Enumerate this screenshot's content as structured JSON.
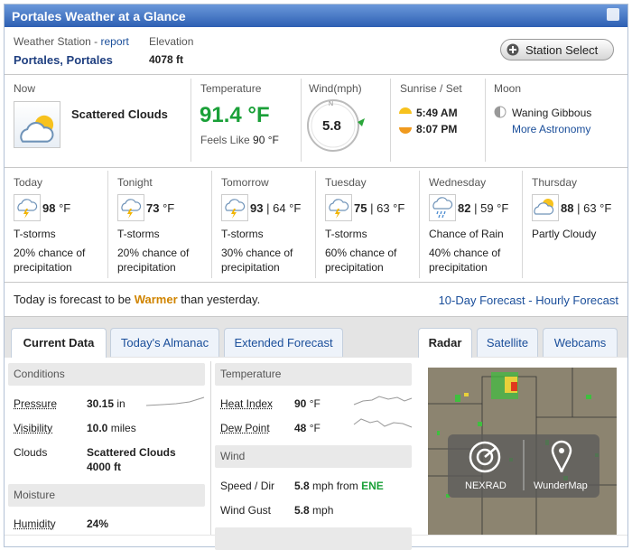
{
  "header": {
    "title": "Portales Weather at a Glance"
  },
  "station": {
    "label": "Weather Station -",
    "link": "report",
    "name": "Portales, Portales",
    "elevation_label": "Elevation",
    "elevation": "4078 ft",
    "button": "Station Select"
  },
  "current": {
    "now_label": "Now",
    "condition": "Scattered Clouds",
    "temperature_label": "Temperature",
    "temperature": "91.4 °F",
    "feels_label": "Feels Like",
    "feels": "90 °F",
    "wind_label": "Wind(mph)",
    "wind_speed": "5.8",
    "compass": "N",
    "sun_label": "Sunrise / Set",
    "sunrise": "5:49 AM",
    "sunset": "8:07 PM",
    "moon_label": "Moon",
    "moon_phase": "Waning Gibbous",
    "moon_link": "More Astronomy"
  },
  "forecast": [
    {
      "day": "Today",
      "hi": "98",
      "rest": "°F",
      "condition": "T-storms",
      "precip": [
        "20% chance of",
        "precipitation"
      ]
    },
    {
      "day": "Tonight",
      "hi": "73",
      "rest": "°F",
      "condition": "T-storms",
      "precip": [
        "20% chance of",
        "precipitation"
      ]
    },
    {
      "day": "Tomorrow",
      "hi": "93",
      "rest": "| 64 °F",
      "condition": "T-storms",
      "precip": [
        "30% chance of",
        "precipitation"
      ]
    },
    {
      "day": "Tuesday",
      "hi": "75",
      "rest": "| 63 °F",
      "condition": "T-storms",
      "precip": [
        "60% chance of",
        "precipitation"
      ]
    },
    {
      "day": "Wednesday",
      "hi": "82",
      "rest": "| 59 °F",
      "condition": "Chance of Rain",
      "precip": [
        "40% chance of",
        "precipitation"
      ]
    },
    {
      "day": "Thursday",
      "hi": "88",
      "rest": "| 63 °F",
      "condition": "Partly Cloudy",
      "precip": []
    }
  ],
  "summary": {
    "before": "Today is forecast to be",
    "highlight": "Warmer",
    "after": "than yesterday.",
    "link1": "10-Day Forecast",
    "separator": "-",
    "link2": "Hourly Forecast"
  },
  "tabs": [
    "Current Data",
    "Today's Almanac",
    "Extended Forecast"
  ],
  "map_tabs": [
    "Radar",
    "Satellite",
    "Webcams"
  ],
  "conditions": {
    "title": "Conditions",
    "pressure": {
      "label": "Pressure",
      "value": "30.15",
      "unit": "in"
    },
    "visibility": {
      "label": "Visibility",
      "value": "10.0",
      "unit": "miles"
    },
    "clouds": {
      "label": "Clouds",
      "value": "Scattered Clouds",
      "sub": "4000 ft"
    }
  },
  "moisture": {
    "title": "Moisture",
    "humidity": {
      "label": "Humidity",
      "value": "24%"
    }
  },
  "temperature": {
    "title": "Temperature",
    "heat_index": {
      "label": "Heat Index",
      "value": "90",
      "unit": "°F"
    },
    "dew_point": {
      "label": "Dew Point",
      "value": "48",
      "unit": "°F"
    }
  },
  "wind": {
    "title": "Wind",
    "speed_dir": {
      "label": "Speed / Dir",
      "value": "5.8",
      "unit": "mph from",
      "dir": "ENE"
    },
    "gust": {
      "label": "Wind Gust",
      "value": "5.8",
      "unit": "mph"
    }
  },
  "radar": {
    "nexrad": "NEXRAD",
    "wundermap": "WunderMap"
  }
}
